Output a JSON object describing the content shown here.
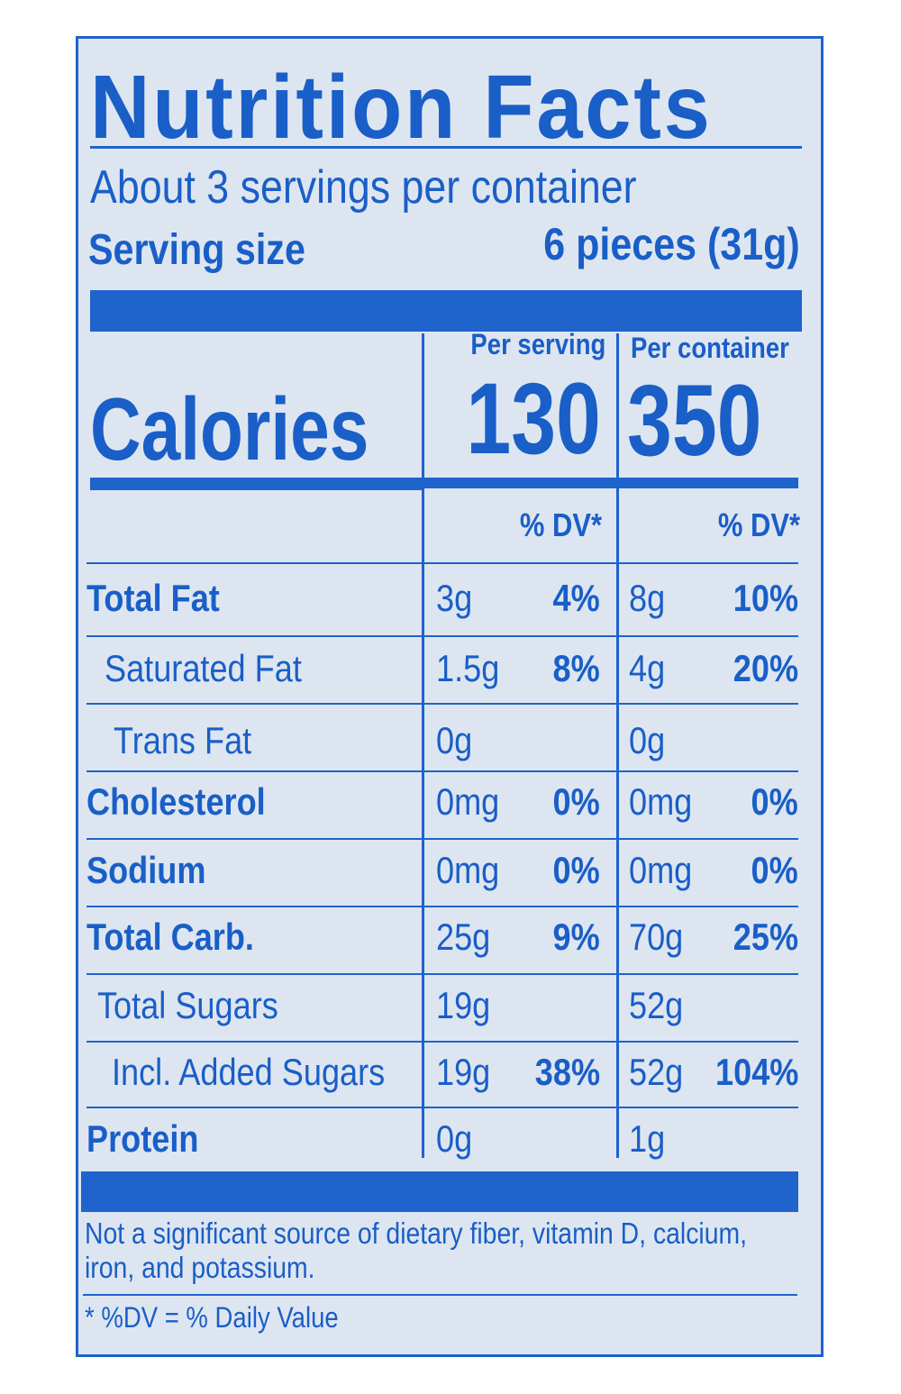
{
  "title": "Nutrition Facts",
  "servings_per_container": "About 3 servings per container",
  "serving_size_label": "Serving size",
  "serving_size_value": "6 pieces (31g)",
  "columns": {
    "per_serving": "Per serving",
    "per_container": "Per container"
  },
  "calories": {
    "label": "Calories",
    "per_serving": "130",
    "per_container": "350"
  },
  "dv_header": {
    "per_serving": "% DV*",
    "per_container": "% DV*"
  },
  "nutrients": [
    {
      "label": "Total Fat",
      "serving_amount": "3g",
      "serving_dv": "4%",
      "container_amount": "8g",
      "container_dv": "10%"
    },
    {
      "label": "Saturated Fat",
      "serving_amount": "1.5g",
      "serving_dv": "8%",
      "container_amount": "4g",
      "container_dv": "20%"
    },
    {
      "label": "Trans Fat",
      "serving_amount": "0g",
      "serving_dv": "",
      "container_amount": "0g",
      "container_dv": ""
    },
    {
      "label": "Cholesterol",
      "serving_amount": "0mg",
      "serving_dv": "0%",
      "container_amount": "0mg",
      "container_dv": "0%"
    },
    {
      "label": "Sodium",
      "serving_amount": "0mg",
      "serving_dv": "0%",
      "container_amount": "0mg",
      "container_dv": "0%"
    },
    {
      "label": "Total Carb.",
      "serving_amount": "25g",
      "serving_dv": "9%",
      "container_amount": "70g",
      "container_dv": "25%"
    },
    {
      "label": "Total Sugars",
      "serving_amount": "19g",
      "serving_dv": "",
      "container_amount": "52g",
      "container_dv": ""
    },
    {
      "label": "Incl. Added Sugars",
      "serving_amount": "19g",
      "serving_dv": "38%",
      "container_amount": "52g",
      "container_dv": "104%"
    },
    {
      "label": "Protein",
      "serving_amount": "0g",
      "serving_dv": "",
      "container_amount": "1g",
      "container_dv": ""
    }
  ],
  "footnote": "Not a significant source of dietary fiber, vitamin D, calcium, iron, and potassium.",
  "footnote_line1": "Not a significant source of dietary fiber, vitamin D, calcium,",
  "footnote_line2": "iron, and potassium.",
  "dv_note": "* %DV = % Daily Value",
  "colors": {
    "ink": "#1a5ec8",
    "background": "#dde6f0"
  }
}
